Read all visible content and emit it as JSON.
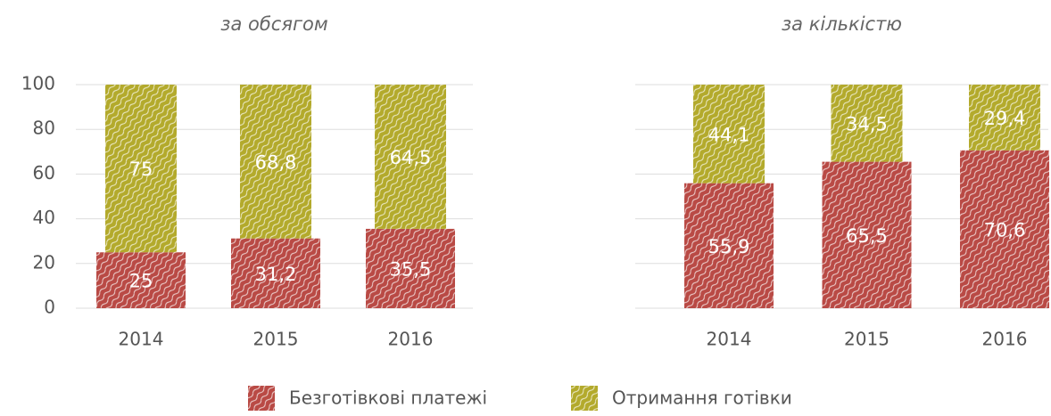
{
  "chart_data": [
    {
      "type": "stacked_bar",
      "title": "за обсягом",
      "categories": [
        "2014",
        "2015",
        "2016"
      ],
      "series": [
        {
          "name": "Безготівкові платежі",
          "color": "#b94a45",
          "values": [
            25,
            31.2,
            35.5
          ],
          "value_labels": [
            "25",
            "31,2",
            "35,5"
          ]
        },
        {
          "name": "Отримання готівки",
          "color": "#b3aa2c",
          "values": [
            75,
            68.8,
            64.5
          ],
          "value_labels": [
            "75",
            "68,8",
            "64,5"
          ]
        }
      ],
      "ylim": [
        0,
        100
      ],
      "yticks": [
        0,
        20,
        40,
        60,
        80,
        100
      ],
      "grid": true
    },
    {
      "type": "stacked_bar",
      "title": "за кількістю",
      "categories": [
        "2014",
        "2015",
        "2016"
      ],
      "series": [
        {
          "name": "Безготівкові платежі",
          "color": "#b94a45",
          "values": [
            55.9,
            65.5,
            70.6
          ],
          "value_labels": [
            "55,9",
            "65,5",
            "70,6"
          ]
        },
        {
          "name": "Отримання готівки",
          "color": "#b3aa2c",
          "values": [
            44.1,
            34.5,
            29.4
          ],
          "value_labels": [
            "44,1",
            "34,5",
            "29,4"
          ]
        }
      ],
      "ylim": [
        0,
        100
      ],
      "yticks": [
        0,
        20,
        40,
        60,
        80,
        100
      ],
      "grid": true,
      "y_tick_labels": false
    }
  ]
}
